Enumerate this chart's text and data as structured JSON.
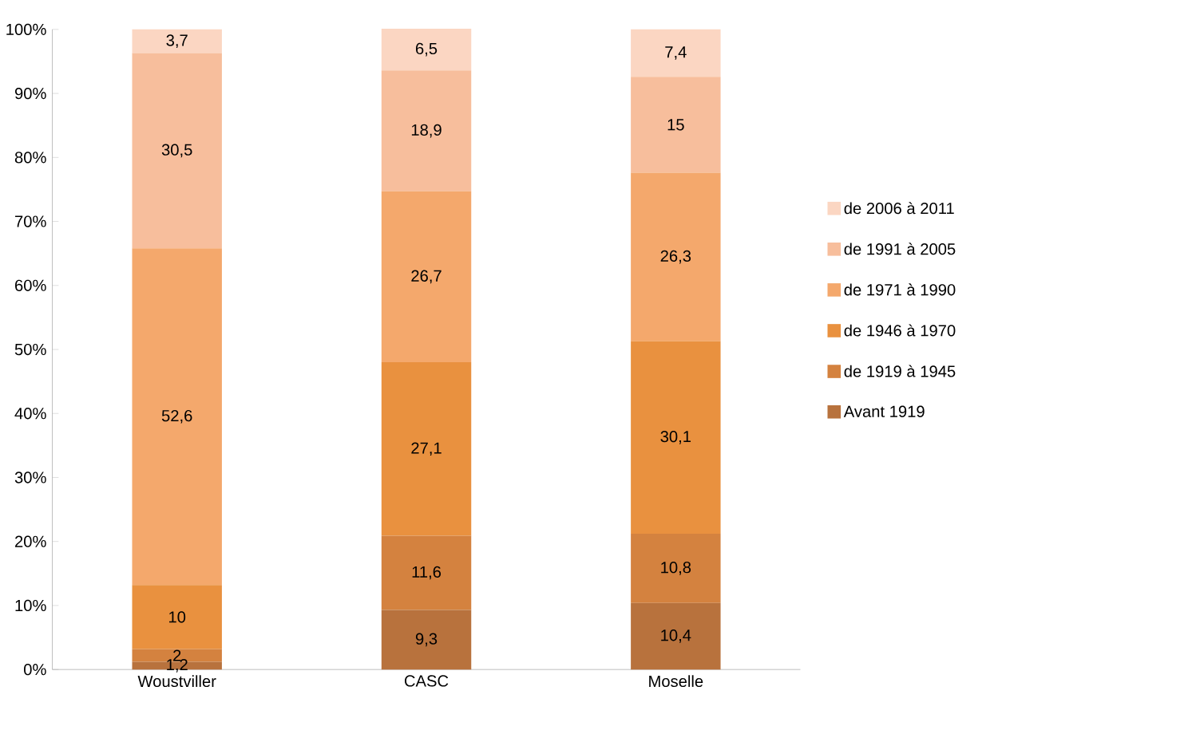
{
  "chart_data": {
    "type": "bar",
    "stacked": true,
    "categories": [
      "Woustviller",
      "CASC",
      "Moselle"
    ],
    "ylim": [
      0,
      100
    ],
    "yticks": [
      {
        "value": 0,
        "label": "0%"
      },
      {
        "value": 10,
        "label": "10%"
      },
      {
        "value": 20,
        "label": "20%"
      },
      {
        "value": 30,
        "label": "30%"
      },
      {
        "value": 40,
        "label": "40%"
      },
      {
        "value": 50,
        "label": "50%"
      },
      {
        "value": 60,
        "label": "60%"
      },
      {
        "value": 70,
        "label": "70%"
      },
      {
        "value": 80,
        "label": "80%"
      },
      {
        "value": 90,
        "label": "90%"
      },
      {
        "value": 100,
        "label": "100%"
      }
    ],
    "legend": "right",
    "grid": false,
    "series": [
      {
        "name": "Avant 1919",
        "color": "#b8723d",
        "values": [
          1.2,
          9.3,
          10.4
        ],
        "value_labels": [
          "1,2",
          "9,3",
          "10,4"
        ]
      },
      {
        "name": "de 1919 à 1945",
        "color": "#d4823f",
        "values": [
          2,
          11.6,
          10.8
        ],
        "value_labels": [
          "2",
          "11,6",
          "10,8"
        ]
      },
      {
        "name": "de 1946 à 1970",
        "color": "#e9913f",
        "values": [
          10,
          27.1,
          30.1
        ],
        "value_labels": [
          "10",
          "27,1",
          "30,1"
        ]
      },
      {
        "name": "de 1971 à 1990",
        "color": "#f4a86c",
        "values": [
          52.6,
          26.7,
          26.3
        ],
        "value_labels": [
          "52,6",
          "26,7",
          "26,3"
        ]
      },
      {
        "name": "de 1991 à 2005",
        "color": "#f7be9c",
        "values": [
          30.5,
          18.9,
          15
        ],
        "value_labels": [
          "30,5",
          "18,9",
          "15"
        ]
      },
      {
        "name": "de 2006 à 2011",
        "color": "#fbd6c2",
        "values": [
          3.7,
          6.5,
          7.4
        ],
        "value_labels": [
          "3,7",
          "6,5",
          "7,4"
        ]
      }
    ]
  }
}
